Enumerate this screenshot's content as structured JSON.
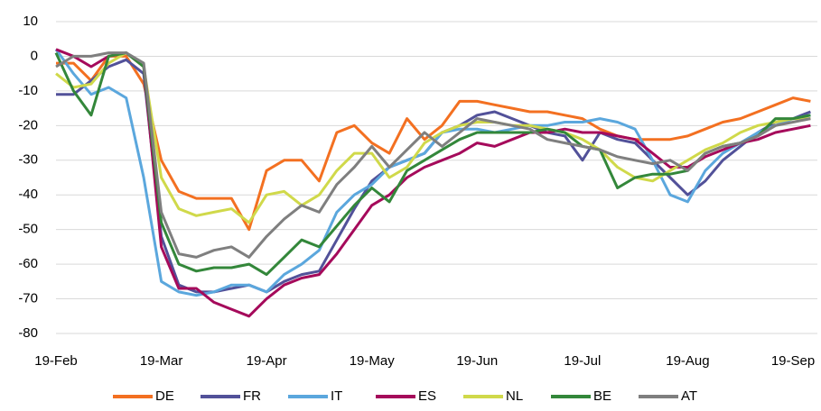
{
  "chart_data": {
    "type": "line",
    "categories": [
      "19-Feb",
      null,
      null,
      null,
      null,
      null,
      "19-Mar",
      null,
      null,
      null,
      null,
      null,
      "19-Apr",
      null,
      null,
      null,
      null,
      null,
      "19-May",
      null,
      null,
      null,
      null,
      null,
      "19-Jun",
      null,
      null,
      null,
      null,
      null,
      "19-Jul",
      null,
      null,
      null,
      null,
      null,
      "19-Aug",
      null,
      null,
      null,
      null,
      null,
      "19-Sep",
      null
    ],
    "ylim": [
      -80,
      10
    ],
    "yticks": [
      -80,
      -70,
      -60,
      -50,
      -40,
      -30,
      -20,
      -10,
      0,
      10
    ],
    "grid": true,
    "legend": "bottom",
    "series": [
      {
        "name": "DE",
        "color": "#f37021",
        "values": [
          -2,
          -2,
          -7,
          0,
          0,
          -8,
          -30,
          -39,
          -41,
          -41,
          -41,
          -50,
          -33,
          -30,
          -30,
          -36,
          -22,
          -20,
          -25,
          -28,
          -18,
          -24,
          -20,
          -13,
          -13,
          -14,
          -15,
          -16,
          -16,
          -17,
          -18,
          -21,
          -23,
          -24,
          -24,
          -24,
          -23,
          -21,
          -19,
          -18,
          -16,
          -14,
          -12,
          -13
        ]
      },
      {
        "name": "FR",
        "color": "#525199",
        "values": [
          -11,
          -11,
          -7,
          -3,
          -1,
          -5,
          -52,
          -66,
          -68,
          -68,
          -67,
          -66,
          -68,
          -65,
          -63,
          -62,
          -53,
          -44,
          -36,
          -32,
          -30,
          -28,
          -22,
          -20,
          -17,
          -16,
          -18,
          -20,
          -22,
          -23,
          -30,
          -22,
          -24,
          -25,
          -30,
          -35,
          -40,
          -36,
          -30,
          -26,
          -22,
          -19,
          -18,
          -16
        ]
      },
      {
        "name": "IT",
        "color": "#5ba7dd",
        "values": [
          2,
          -5,
          -11,
          -9,
          -12,
          -35,
          -65,
          -68,
          -69,
          -68,
          -66,
          -66,
          -68,
          -63,
          -60,
          -56,
          -45,
          -40,
          -37,
          -32,
          -30,
          -28,
          -22,
          -21,
          -21,
          -22,
          -21,
          -20,
          -20,
          -19,
          -19,
          -18,
          -19,
          -21,
          -30,
          -40,
          -42,
          -33,
          -28,
          -25,
          -22,
          -20,
          -18,
          -17
        ]
      },
      {
        "name": "ES",
        "color": "#a50a5b",
        "values": [
          2,
          0,
          -3,
          0,
          1,
          -3,
          -55,
          -67,
          -67,
          -71,
          -73,
          -75,
          -70,
          -66,
          -64,
          -63,
          -57,
          -50,
          -43,
          -40,
          -35,
          -32,
          -30,
          -28,
          -25,
          -26,
          -24,
          -22,
          -22,
          -21,
          -22,
          -22,
          -23,
          -24,
          -28,
          -32,
          -32,
          -29,
          -27,
          -25,
          -24,
          -22,
          -21,
          -20
        ]
      },
      {
        "name": "NL",
        "color": "#d0d94a",
        "values": [
          -5,
          -9,
          -8,
          -2,
          1,
          -3,
          -35,
          -44,
          -46,
          -45,
          -44,
          -48,
          -40,
          -39,
          -43,
          -40,
          -33,
          -28,
          -28,
          -35,
          -32,
          -25,
          -22,
          -20,
          -19,
          -19,
          -20,
          -20,
          -21,
          -22,
          -24,
          -27,
          -32,
          -35,
          -36,
          -33,
          -30,
          -27,
          -25,
          -22,
          -20,
          -19,
          -18,
          -18
        ]
      },
      {
        "name": "BE",
        "color": "#33873a",
        "values": [
          1,
          -10,
          -17,
          0,
          1,
          -3,
          -48,
          -60,
          -62,
          -61,
          -61,
          -60,
          -63,
          -58,
          -53,
          -55,
          -49,
          -43,
          -38,
          -42,
          -33,
          -30,
          -27,
          -24,
          -22,
          -22,
          -22,
          -22,
          -21,
          -22,
          -26,
          -27,
          -38,
          -35,
          -34,
          -34,
          -33,
          -28,
          -26,
          -25,
          -23,
          -18,
          -18,
          -17
        ]
      },
      {
        "name": "AT",
        "color": "#7f7f7f",
        "values": [
          -3,
          0,
          0,
          1,
          1,
          -2,
          -45,
          -57,
          -58,
          -56,
          -55,
          -58,
          -52,
          -47,
          -43,
          -45,
          -37,
          -32,
          -26,
          -32,
          -27,
          -22,
          -26,
          -22,
          -18,
          -19,
          -20,
          -21,
          -24,
          -25,
          -26,
          -27,
          -29,
          -30,
          -31,
          -30,
          -33,
          -28,
          -26,
          -25,
          -23,
          -20,
          -19,
          -18
        ]
      }
    ]
  }
}
